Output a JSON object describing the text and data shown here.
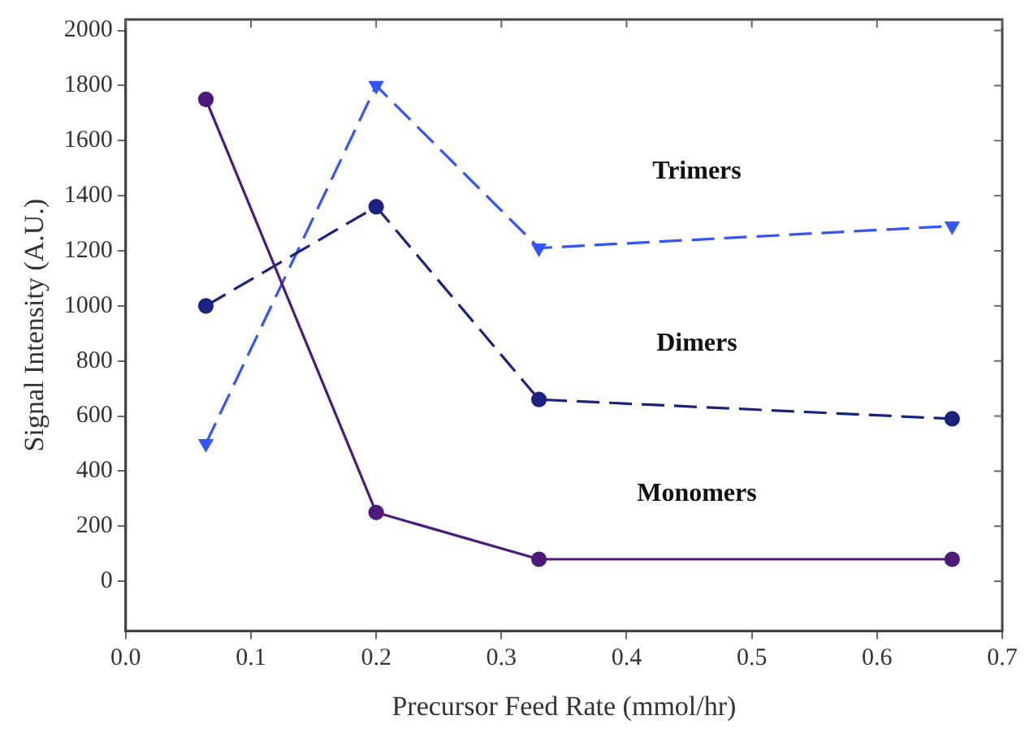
{
  "chart_data": {
    "type": "line",
    "xlabel": "Precursor Feed Rate (mmol/hr)",
    "ylabel": "Signal Intensity (A.U.)",
    "x": [
      0.064,
      0.2,
      0.33,
      0.66
    ],
    "series": [
      {
        "name": "Monomers",
        "color": "#4b1a7a",
        "values": [
          1750,
          250,
          80,
          80
        ],
        "marker": "circle",
        "line_style": "solid"
      },
      {
        "name": "Dimers",
        "color": "#1a237e",
        "values": [
          1000,
          1360,
          660,
          590
        ],
        "marker": "circle",
        "line_style": "dashed"
      },
      {
        "name": "Trimers",
        "color": "#3355ff",
        "values": [
          500,
          1800,
          1210,
          1290
        ],
        "marker": "triangle",
        "line_style": "dashed"
      }
    ],
    "xlim": [
      0,
      0.7
    ],
    "xticks": [
      {
        "value": 0,
        "label": "0.0"
      },
      0.1,
      0.2,
      0.3,
      0.4,
      0.5,
      0.6,
      0.7
    ],
    "ylim": [
      -180,
      2040
    ],
    "yticks": [
      0,
      200,
      400,
      600,
      800,
      1000,
      1200,
      1400,
      1600,
      1800,
      2000
    ],
    "grid": false,
    "legend": false
  }
}
